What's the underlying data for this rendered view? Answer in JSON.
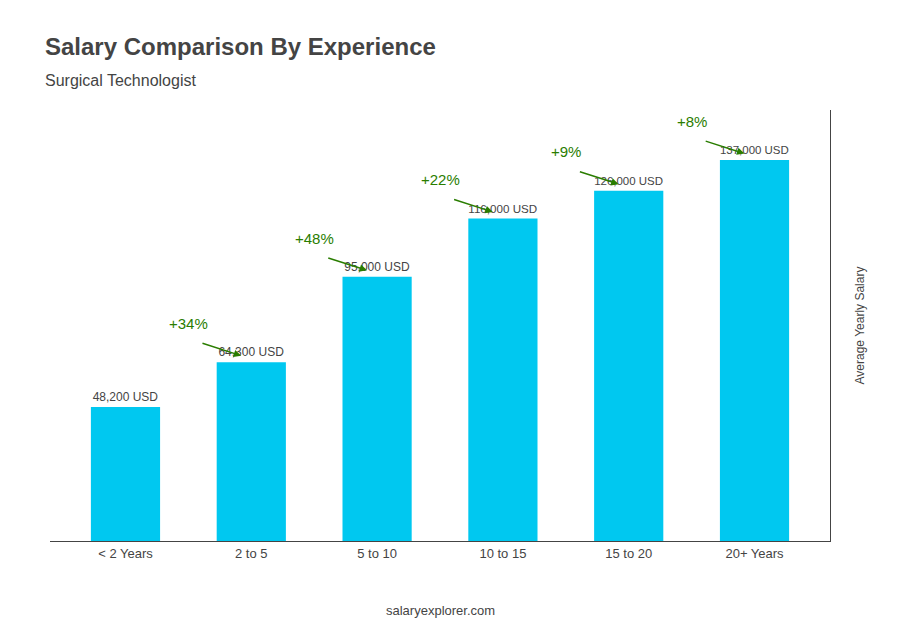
{
  "chart_data": {
    "type": "bar",
    "title": "Salary Comparison By Experience",
    "subtitle": "Surgical Technologist",
    "categories": [
      "< 2 Years",
      "2 to 5",
      "5 to 10",
      "10 to 15",
      "15 to 20",
      "20+ Years"
    ],
    "values": [
      48200,
      64300,
      95000,
      116000,
      126000,
      137000
    ],
    "value_labels": [
      "48,200 USD",
      "64,300 USD",
      "95,000 USD",
      "116,000 USD",
      "126,000 USD",
      "137,000 USD"
    ],
    "data_labels": true,
    "color": "#00c8f0",
    "annotations": [
      "+34%",
      "+48%",
      "+22%",
      "+9%",
      "+8%"
    ],
    "watermark": "salaryexplorer.com",
    "ylabel": "Average Yearly Salary",
    "ylim": [
      0,
      155000
    ],
    "tick_labels": "x",
    "grid": false
  }
}
